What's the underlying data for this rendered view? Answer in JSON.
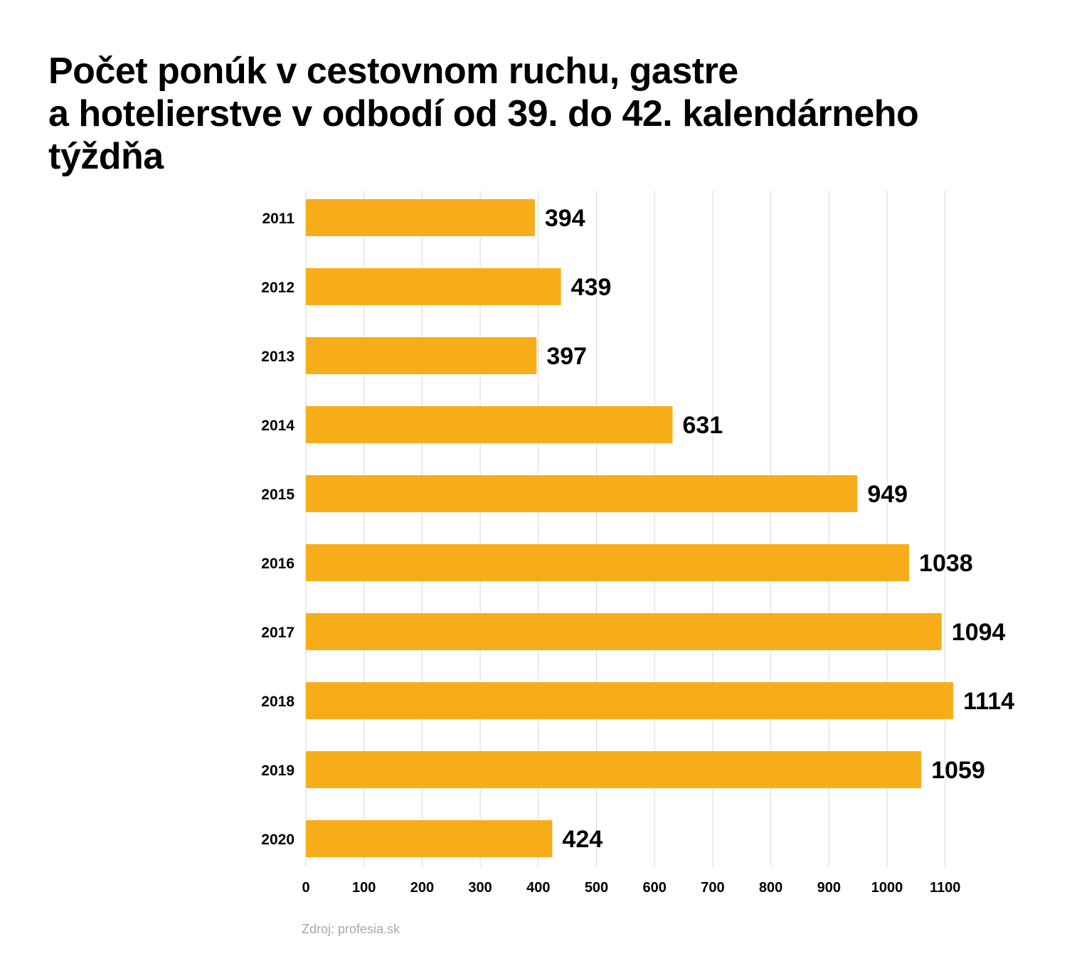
{
  "title_lines": [
    "Počet ponúk v cestovnom ruchu, gastre",
    "a hotelierstve v odbodí od 39. do 42. kalendárneho",
    "týždňa"
  ],
  "source": "Zdroj: profesia.sk",
  "colors": {
    "bar": "#F7AD1A",
    "grid": "#d9d9d9",
    "text": "#000000"
  },
  "chart_data": {
    "type": "bar",
    "orientation": "horizontal",
    "categories": [
      "2011",
      "2012",
      "2013",
      "2014",
      "2015",
      "2016",
      "2017",
      "2018",
      "2019",
      "2020"
    ],
    "values": [
      394,
      439,
      397,
      631,
      949,
      1038,
      1094,
      1114,
      1059,
      424
    ],
    "xticks": [
      0,
      100,
      200,
      300,
      400,
      500,
      600,
      700,
      800,
      900,
      1000,
      1100
    ],
    "xlim": [
      0,
      1100
    ],
    "grid": "vertical",
    "data_labels": true
  }
}
